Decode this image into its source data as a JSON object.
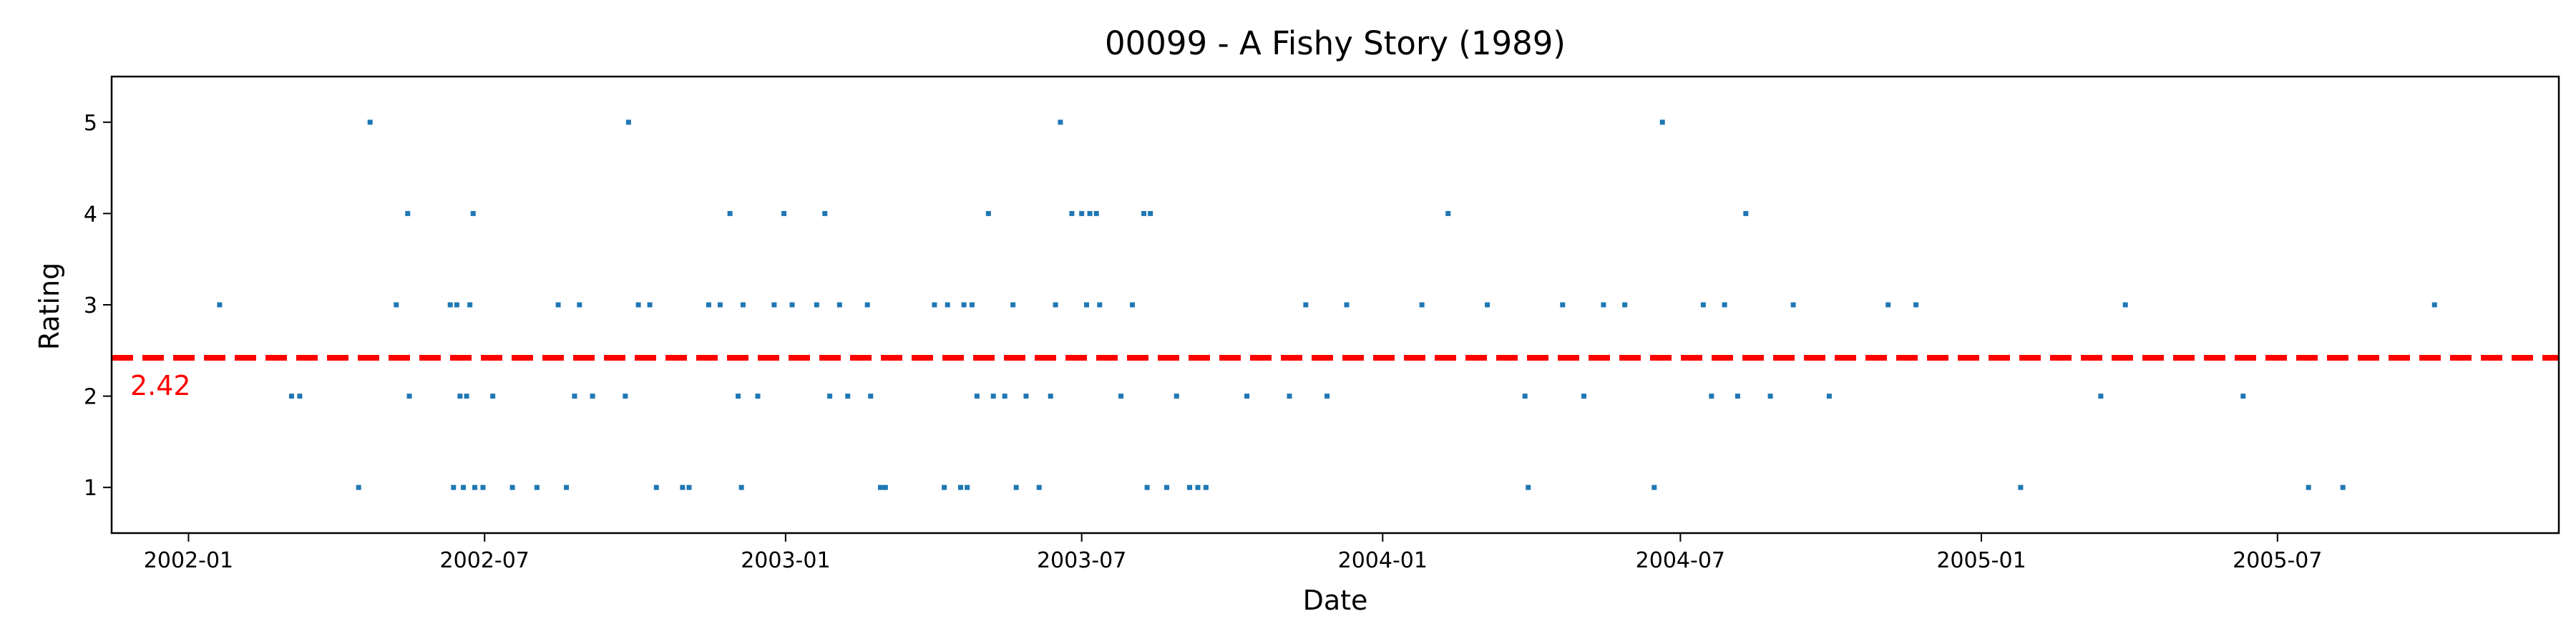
{
  "chart_data": {
    "type": "scatter",
    "title": "00099 - A Fishy Story (1989)",
    "xlabel": "Date",
    "ylabel": "Rating",
    "xlim": [
      "2001-11-15",
      "2005-12-20"
    ],
    "ylim": [
      0.5,
      5.5
    ],
    "x_ticks": [
      "2002-01",
      "2002-07",
      "2003-01",
      "2003-07",
      "2004-01",
      "2004-07",
      "2005-01",
      "2005-07"
    ],
    "y_ticks": [
      1,
      2,
      3,
      4,
      5
    ],
    "grid": false,
    "point_color": "#1f77b4",
    "mean": {
      "value": 2.42,
      "label": "2.42",
      "color": "#ff0000"
    },
    "points": [
      [
        "2002-01-20",
        3
      ],
      [
        "2002-03-05",
        2
      ],
      [
        "2002-03-10",
        2
      ],
      [
        "2002-04-15",
        1
      ],
      [
        "2002-04-22",
        5
      ],
      [
        "2002-05-08",
        3
      ],
      [
        "2002-05-15",
        4
      ],
      [
        "2002-05-16",
        2
      ],
      [
        "2002-06-10",
        3
      ],
      [
        "2002-06-12",
        1
      ],
      [
        "2002-06-14",
        3
      ],
      [
        "2002-06-16",
        2
      ],
      [
        "2002-06-18",
        1
      ],
      [
        "2002-06-20",
        2
      ],
      [
        "2002-06-22",
        3
      ],
      [
        "2002-06-24",
        4
      ],
      [
        "2002-06-25",
        1
      ],
      [
        "2002-06-30",
        1
      ],
      [
        "2002-07-06",
        2
      ],
      [
        "2002-07-18",
        1
      ],
      [
        "2002-08-02",
        1
      ],
      [
        "2002-08-15",
        3
      ],
      [
        "2002-08-20",
        1
      ],
      [
        "2002-08-25",
        2
      ],
      [
        "2002-08-28",
        3
      ],
      [
        "2002-09-05",
        2
      ],
      [
        "2002-09-25",
        2
      ],
      [
        "2002-09-27",
        5
      ],
      [
        "2002-10-03",
        3
      ],
      [
        "2002-10-10",
        3
      ],
      [
        "2002-10-14",
        1
      ],
      [
        "2002-10-30",
        1
      ],
      [
        "2002-11-03",
        1
      ],
      [
        "2002-11-15",
        3
      ],
      [
        "2002-11-22",
        3
      ],
      [
        "2002-11-28",
        4
      ],
      [
        "2002-12-03",
        2
      ],
      [
        "2002-12-05",
        1
      ],
      [
        "2002-12-06",
        3
      ],
      [
        "2002-12-15",
        2
      ],
      [
        "2002-12-25",
        3
      ],
      [
        "2002-12-31",
        4
      ],
      [
        "2003-01-05",
        3
      ],
      [
        "2003-01-20",
        3
      ],
      [
        "2003-01-25",
        4
      ],
      [
        "2003-01-28",
        2
      ],
      [
        "2003-02-03",
        3
      ],
      [
        "2003-02-08",
        2
      ],
      [
        "2003-02-20",
        3
      ],
      [
        "2003-02-22",
        2
      ],
      [
        "2003-02-28",
        1
      ],
      [
        "2003-03-03",
        1
      ],
      [
        "2003-04-02",
        3
      ],
      [
        "2003-04-08",
        1
      ],
      [
        "2003-04-10",
        3
      ],
      [
        "2003-04-18",
        1
      ],
      [
        "2003-04-20",
        3
      ],
      [
        "2003-04-22",
        1
      ],
      [
        "2003-04-25",
        3
      ],
      [
        "2003-04-28",
        2
      ],
      [
        "2003-05-05",
        4
      ],
      [
        "2003-05-08",
        2
      ],
      [
        "2003-05-15",
        2
      ],
      [
        "2003-05-20",
        3
      ],
      [
        "2003-05-22",
        1
      ],
      [
        "2003-05-28",
        2
      ],
      [
        "2003-06-05",
        1
      ],
      [
        "2003-06-12",
        2
      ],
      [
        "2003-06-15",
        3
      ],
      [
        "2003-06-18",
        5
      ],
      [
        "2003-06-25",
        4
      ],
      [
        "2003-07-01",
        4
      ],
      [
        "2003-07-04",
        3
      ],
      [
        "2003-07-06",
        4
      ],
      [
        "2003-07-10",
        4
      ],
      [
        "2003-07-12",
        3
      ],
      [
        "2003-07-25",
        2
      ],
      [
        "2003-08-01",
        3
      ],
      [
        "2003-08-08",
        4
      ],
      [
        "2003-08-10",
        1
      ],
      [
        "2003-08-12",
        4
      ],
      [
        "2003-08-22",
        1
      ],
      [
        "2003-08-28",
        2
      ],
      [
        "2003-09-05",
        1
      ],
      [
        "2003-09-10",
        1
      ],
      [
        "2003-09-15",
        1
      ],
      [
        "2003-10-10",
        2
      ],
      [
        "2003-11-05",
        2
      ],
      [
        "2003-11-15",
        3
      ],
      [
        "2003-11-28",
        2
      ],
      [
        "2003-12-10",
        3
      ],
      [
        "2004-01-25",
        3
      ],
      [
        "2004-02-10",
        4
      ],
      [
        "2004-03-05",
        3
      ],
      [
        "2004-03-28",
        2
      ],
      [
        "2004-03-30",
        1
      ],
      [
        "2004-04-20",
        3
      ],
      [
        "2004-05-03",
        2
      ],
      [
        "2004-05-15",
        3
      ],
      [
        "2004-05-28",
        3
      ],
      [
        "2004-06-15",
        1
      ],
      [
        "2004-06-20",
        5
      ],
      [
        "2004-07-15",
        3
      ],
      [
        "2004-07-20",
        2
      ],
      [
        "2004-07-28",
        3
      ],
      [
        "2004-08-05",
        2
      ],
      [
        "2004-08-10",
        4
      ],
      [
        "2004-08-25",
        2
      ],
      [
        "2004-09-08",
        3
      ],
      [
        "2004-09-30",
        2
      ],
      [
        "2004-11-05",
        3
      ],
      [
        "2004-11-22",
        3
      ],
      [
        "2005-01-25",
        1
      ],
      [
        "2005-03-15",
        2
      ],
      [
        "2005-03-30",
        3
      ],
      [
        "2005-06-10",
        2
      ],
      [
        "2005-07-20",
        1
      ],
      [
        "2005-08-10",
        1
      ],
      [
        "2005-10-05",
        3
      ]
    ]
  }
}
